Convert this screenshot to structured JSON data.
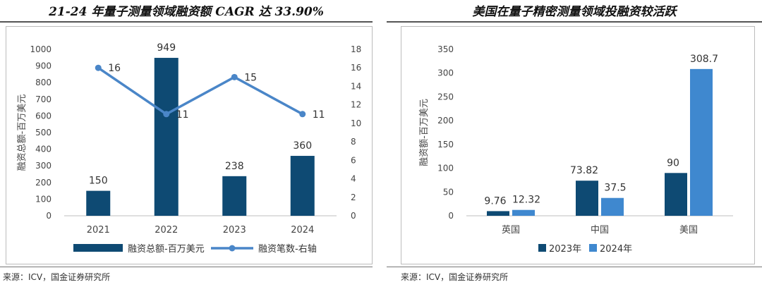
{
  "chart_data": [
    {
      "type": "bar+line",
      "title": "21-24 年量子测量领域融资额 CAGR 达 33.90%",
      "categories": [
        "2021",
        "2022",
        "2023",
        "2024"
      ],
      "series": [
        {
          "name": "融资总额-百万美元",
          "kind": "bar",
          "axis": "left",
          "color": "#0e4a73",
          "values": [
            150,
            949,
            238,
            360
          ]
        },
        {
          "name": "融资笔数-右轴",
          "kind": "line",
          "axis": "right",
          "color": "#4a86c8",
          "values": [
            16,
            11,
            15,
            11
          ]
        }
      ],
      "ylabel": "融资总额-百万美元",
      "ylim": [
        0,
        1000
      ],
      "yticks": [
        0,
        100,
        200,
        300,
        400,
        500,
        600,
        700,
        800,
        900,
        1000
      ],
      "y2lim": [
        0,
        18
      ],
      "y2ticks": [
        0,
        2,
        4,
        6,
        8,
        10,
        12,
        14,
        16,
        18
      ],
      "legend": "bottom",
      "grid": false
    },
    {
      "type": "bar",
      "title": "美国在量子精密测量领域投融资较活跃",
      "categories": [
        "英国",
        "中国",
        "美国"
      ],
      "series": [
        {
          "name": "2023年",
          "color": "#0e4a73",
          "values": [
            9.76,
            73.82,
            90
          ]
        },
        {
          "name": "2024年",
          "color": "#3f88cf",
          "values": [
            12.32,
            37.5,
            308.7
          ]
        }
      ],
      "ylabel": "融资额-百万美元",
      "ylim": [
        0,
        350
      ],
      "yticks": [
        0,
        50,
        100,
        150,
        200,
        250,
        300,
        350
      ],
      "legend": "bottom",
      "grid": false
    }
  ],
  "source": {
    "left": "来源：ICV，国金证券研究所",
    "right": "来源：ICV，国金证券研究所"
  }
}
